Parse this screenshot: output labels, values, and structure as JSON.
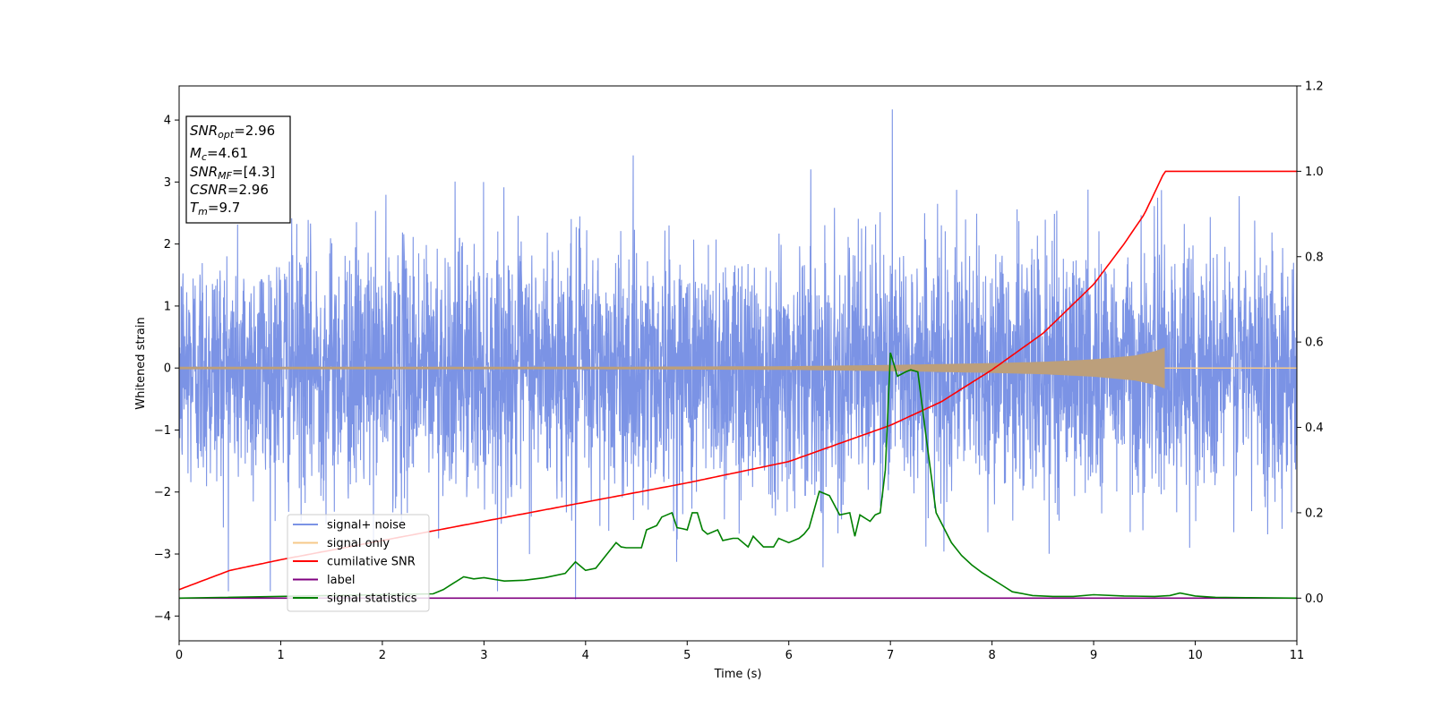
{
  "chart_data": {
    "type": "line",
    "xlabel": "Time (s)",
    "ylabel": "Whitened strain",
    "xlim": [
      0,
      11
    ],
    "ylim": [
      -4.4,
      4.55
    ],
    "y2lim": [
      -0.1,
      1.2
    ],
    "x_ticks": [
      0,
      1,
      2,
      3,
      4,
      5,
      6,
      7,
      8,
      9,
      10,
      11
    ],
    "y_ticks": [
      -4,
      -3,
      -2,
      -1,
      0,
      1,
      2,
      3,
      4
    ],
    "y_tick_labels": [
      "−4",
      "−3",
      "−2",
      "−1",
      "0",
      "1",
      "2",
      "3",
      "4"
    ],
    "y2_ticks": [
      0.0,
      0.2,
      0.4,
      0.6,
      0.8,
      1.0,
      1.2
    ],
    "y2_tick_labels": [
      "0.0",
      "0.2",
      "0.4",
      "0.6",
      "0.8",
      "1.0",
      "1.2"
    ],
    "grid": false,
    "legend_position": "lower-left",
    "annotation": {
      "position": "top-left",
      "lines": [
        {
          "sym": "SNR",
          "sub": "opt",
          "value": "=2.96"
        },
        {
          "sym": "M",
          "sub": "c",
          "value": "=4.61"
        },
        {
          "sym": "SNR",
          "sub": "MF",
          "value": "=[4.3]"
        },
        {
          "sym": "CSNR",
          "sub": "",
          "value": "=2.96"
        },
        {
          "sym": "T",
          "sub": "m",
          "value": "=9.7"
        }
      ]
    },
    "series": [
      {
        "name": "signal+ noise",
        "axis": "left",
        "color": "#7b93e5",
        "description": "whitened noise, std approx 1.0, spans roughly -3.7 to 4.2",
        "noise_std": 1.0,
        "max_peak": {
          "x": 7.02,
          "y": 4.17
        },
        "min_peak": {
          "x": 3.9,
          "y": -3.73
        }
      },
      {
        "name": "signal only",
        "axis": "left",
        "color": "#f6c889",
        "chirp_end": 9.7,
        "envelope": {
          "x": [
            0,
            4,
            6,
            7,
            8,
            8.5,
            9,
            9.4,
            9.6,
            9.7
          ],
          "y": [
            0.02,
            0.02,
            0.03,
            0.05,
            0.08,
            0.1,
            0.14,
            0.2,
            0.27,
            0.33
          ]
        }
      },
      {
        "name": "cumilative SNR",
        "axis": "right",
        "color": "#ff0000",
        "x": [
          0,
          0.5,
          1,
          2,
          3,
          4,
          5,
          6,
          7,
          7.5,
          8,
          8.5,
          9,
          9.3,
          9.5,
          9.7,
          11
        ],
        "y": [
          0.02,
          0.065,
          0.09,
          0.135,
          0.18,
          0.225,
          0.27,
          0.32,
          0.405,
          0.46,
          0.535,
          0.62,
          0.735,
          0.83,
          0.9,
          1.0,
          1.0
        ]
      },
      {
        "name": "label",
        "axis": "right",
        "color": "#800080",
        "x": [
          0,
          11
        ],
        "y": [
          0.0,
          0.0
        ]
      },
      {
        "name": "signal statistics",
        "axis": "right",
        "color": "#008000",
        "x": [
          0,
          2.5,
          2.6,
          2.7,
          2.8,
          2.9,
          3.0,
          3.2,
          3.4,
          3.6,
          3.8,
          3.9,
          4.0,
          4.1,
          4.2,
          4.3,
          4.35,
          4.4,
          4.55,
          4.6,
          4.7,
          4.75,
          4.85,
          4.9,
          4.95,
          5.0,
          5.05,
          5.1,
          5.15,
          5.2,
          5.3,
          5.35,
          5.45,
          5.5,
          5.6,
          5.65,
          5.75,
          5.85,
          5.9,
          6.0,
          6.1,
          6.15,
          6.2,
          6.3,
          6.4,
          6.5,
          6.6,
          6.65,
          6.7,
          6.8,
          6.85,
          6.9,
          6.95,
          7.0,
          7.07,
          7.15,
          7.2,
          7.27,
          7.35,
          7.45,
          7.6,
          7.7,
          7.8,
          7.9,
          8.0,
          8.1,
          8.2,
          8.4,
          8.6,
          8.8,
          9.0,
          9.3,
          9.6,
          9.75,
          9.85,
          10.0,
          10.2,
          10.5,
          11.0
        ],
        "y": [
          0.0,
          0.01,
          0.02,
          0.035,
          0.05,
          0.045,
          0.048,
          0.04,
          0.042,
          0.048,
          0.058,
          0.085,
          0.065,
          0.07,
          0.1,
          0.13,
          0.12,
          0.118,
          0.118,
          0.16,
          0.17,
          0.19,
          0.2,
          0.165,
          0.163,
          0.16,
          0.2,
          0.2,
          0.16,
          0.15,
          0.16,
          0.135,
          0.14,
          0.14,
          0.12,
          0.145,
          0.12,
          0.12,
          0.14,
          0.13,
          0.14,
          0.15,
          0.165,
          0.25,
          0.24,
          0.195,
          0.2,
          0.145,
          0.195,
          0.18,
          0.195,
          0.2,
          0.3,
          0.575,
          0.52,
          0.53,
          0.535,
          0.53,
          0.38,
          0.2,
          0.13,
          0.1,
          0.078,
          0.06,
          0.045,
          0.03,
          0.015,
          0.006,
          0.004,
          0.004,
          0.008,
          0.005,
          0.004,
          0.006,
          0.012,
          0.005,
          0.002,
          0.001,
          0.0
        ]
      }
    ]
  }
}
